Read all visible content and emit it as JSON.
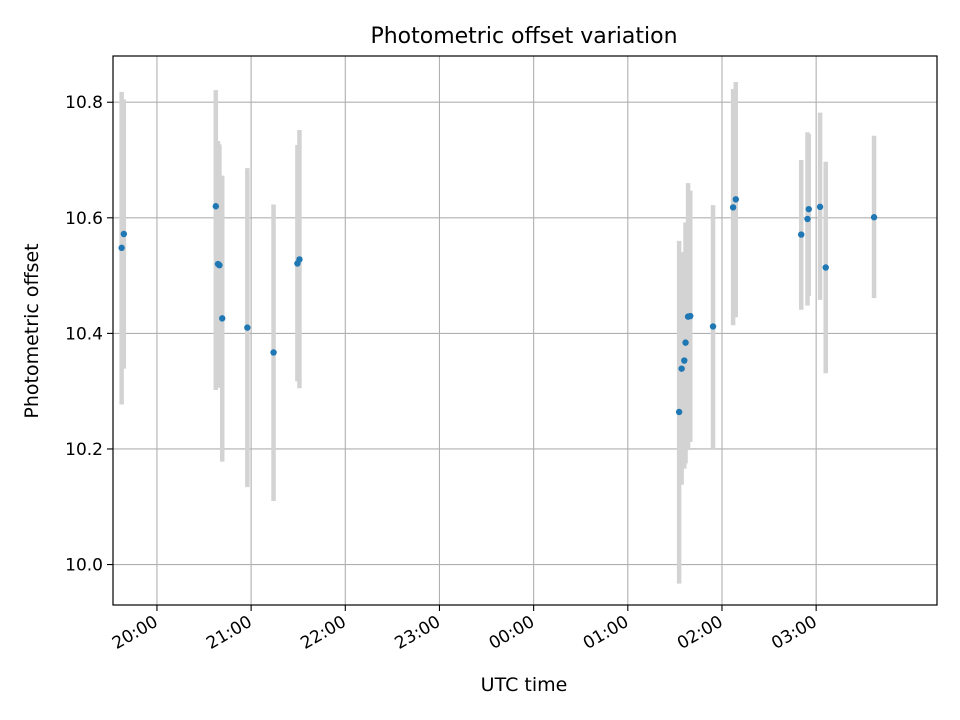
{
  "chart_data": {
    "type": "scatter",
    "title": "Photometric offset variation",
    "xlabel": "UTC time",
    "ylabel": "Photometric offset",
    "x_is_time": true,
    "xlim": [
      "19:32",
      "28:17"
    ],
    "ylim": [
      9.93,
      10.88
    ],
    "x_ticks": [
      "20:00",
      "21:00",
      "22:00",
      "23:00",
      "00:00",
      "01:00",
      "02:00",
      "03:00"
    ],
    "y_ticks": [
      "10.0",
      "10.2",
      "10.4",
      "10.6",
      "10.8"
    ],
    "grid": true,
    "colors": {
      "marker": "#1f77b4",
      "errorbar": "#d3d3d3",
      "grid": "#b0b0b0"
    },
    "points": [
      {
        "x": "19:37.5",
        "y": 10.548,
        "lo": 10.277,
        "hi": 10.818
      },
      {
        "x": "19:38.9",
        "y": 10.572,
        "lo": 10.339,
        "hi": 10.805
      },
      {
        "x": "20:37.5",
        "y": 10.62,
        "lo": 10.302,
        "hi": 10.821
      },
      {
        "x": "20:38.9",
        "y": 10.52,
        "lo": 10.306,
        "hi": 10.733
      },
      {
        "x": "20:39.8",
        "y": 10.518,
        "lo": 10.31,
        "hi": 10.727
      },
      {
        "x": "20:41.6",
        "y": 10.426,
        "lo": 10.178,
        "hi": 10.673
      },
      {
        "x": "20:57.6",
        "y": 10.41,
        "lo": 10.134,
        "hi": 10.686
      },
      {
        "x": "21:14.3",
        "y": 10.367,
        "lo": 10.11,
        "hi": 10.623
      },
      {
        "x": "21:29.5",
        "y": 10.521,
        "lo": 10.317,
        "hi": 10.726
      },
      {
        "x": "21:30.8",
        "y": 10.528,
        "lo": 10.305,
        "hi": 10.752
      },
      {
        "x": "01:32.7",
        "y": 10.264,
        "lo": 9.967,
        "hi": 10.56
      },
      {
        "x": "01:34.3",
        "y": 10.339,
        "lo": 10.138,
        "hi": 10.54
      },
      {
        "x": "01:36.0",
        "y": 10.353,
        "lo": 10.166,
        "hi": 10.541
      },
      {
        "x": "01:36.8",
        "y": 10.384,
        "lo": 10.175,
        "hi": 10.592
      },
      {
        "x": "01:38.4",
        "y": 10.429,
        "lo": 10.198,
        "hi": 10.66
      },
      {
        "x": "01:39.8",
        "y": 10.43,
        "lo": 10.212,
        "hi": 10.647
      },
      {
        "x": "01:54.3",
        "y": 10.412,
        "lo": 10.2,
        "hi": 10.622
      },
      {
        "x": "02:07.1",
        "y": 10.618,
        "lo": 10.414,
        "hi": 10.823
      },
      {
        "x": "02:08.8",
        "y": 10.632,
        "lo": 10.428,
        "hi": 10.835
      },
      {
        "x": "02:50.5",
        "y": 10.571,
        "lo": 10.441,
        "hi": 10.7
      },
      {
        "x": "02:54.5",
        "y": 10.598,
        "lo": 10.448,
        "hi": 10.748
      },
      {
        "x": "02:55.3",
        "y": 10.615,
        "lo": 10.465,
        "hi": 10.745
      },
      {
        "x": "03:02.5",
        "y": 10.619,
        "lo": 10.458,
        "hi": 10.782
      },
      {
        "x": "03:06.1",
        "y": 10.514,
        "lo": 10.331,
        "hi": 10.697
      },
      {
        "x": "03:36.9",
        "y": 10.601,
        "lo": 10.461,
        "hi": 10.742
      }
    ]
  }
}
